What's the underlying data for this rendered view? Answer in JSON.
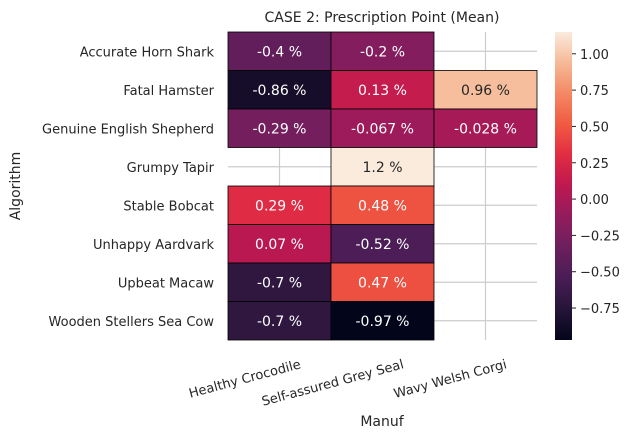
{
  "chart_data": {
    "type": "heatmap",
    "title": "CASE 2: Prescription Point (Mean)",
    "xlabel": "Manuf",
    "ylabel": "Algorithm",
    "x_categories": [
      "Healthy Crocodile",
      "Self-assured Grey Seal",
      "Wavy Welsh Corgi"
    ],
    "y_categories": [
      "Accurate Horn Shark",
      "Fatal Hamster",
      "Genuine English Shepherd",
      "Grumpy Tapir",
      "Stable Bobcat",
      "Unhappy Aardvark",
      "Upbeat Macaw",
      "Wooden Stellers Sea Cow"
    ],
    "values": [
      [
        -0.4,
        -0.2,
        null
      ],
      [
        -0.86,
        0.13,
        0.96
      ],
      [
        -0.29,
        -0.067,
        -0.028
      ],
      [
        null,
        1.2,
        null
      ],
      [
        0.29,
        0.48,
        null
      ],
      [
        0.07,
        -0.52,
        null
      ],
      [
        -0.7,
        0.47,
        null
      ],
      [
        -0.7,
        -0.97,
        null
      ]
    ],
    "cell_labels": [
      [
        "-0.4 %",
        "-0.2 %",
        ""
      ],
      [
        "-0.86 %",
        "0.13 %",
        "0.96 %"
      ],
      [
        "-0.29 %",
        "-0.067 %",
        "-0.028 %"
      ],
      [
        "",
        "1.2 %",
        ""
      ],
      [
        "0.29 %",
        "0.48 %",
        ""
      ],
      [
        "0.07 %",
        "-0.52 %",
        ""
      ],
      [
        "-0.7 %",
        "0.47 %",
        ""
      ],
      [
        "-0.7 %",
        "-0.97 %",
        ""
      ]
    ],
    "colorbar": {
      "vmin": -0.97,
      "vmax": 1.15,
      "ticks": [
        1.0,
        0.75,
        0.5,
        0.25,
        0.0,
        -0.25,
        -0.5,
        -0.75
      ],
      "tick_labels": [
        "1.00",
        "0.75",
        "0.50",
        "0.25",
        "0.00",
        "−0.25",
        "−0.50",
        "−0.75"
      ],
      "colormap": "rocket"
    },
    "grid": true,
    "colors": {
      "missing_cell": "#ffffff",
      "cell_border": "#000000",
      "grid": "#cccccc",
      "text": "#262626"
    }
  }
}
